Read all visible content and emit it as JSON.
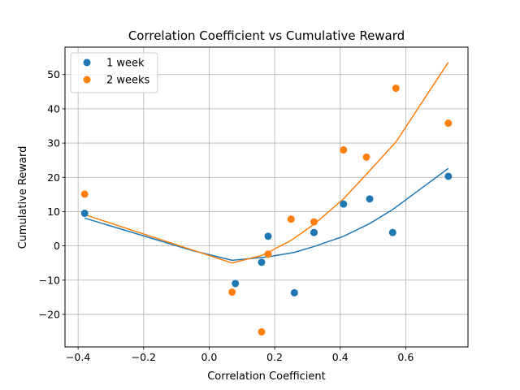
{
  "chart_data": {
    "type": "scatter",
    "title": "Correlation Coefficient vs Cumulative Reward",
    "xlabel": "Correlation Coefficient",
    "ylabel": "Cumulative Reward",
    "xlim": [
      -0.44,
      0.79
    ],
    "ylim": [
      -29.5,
      58
    ],
    "xticks": [
      -0.4,
      -0.2,
      0.0,
      0.2,
      0.4,
      0.6
    ],
    "xtick_labels": [
      "−0.4",
      "−0.2",
      "0.0",
      "0.2",
      "0.4",
      "0.6"
    ],
    "yticks": [
      -20,
      -10,
      0,
      10,
      20,
      30,
      40,
      50
    ],
    "ytick_labels": [
      "−20",
      "−10",
      "0",
      "10",
      "20",
      "30",
      "40",
      "50"
    ],
    "grid": true,
    "legend_position": "upper-left",
    "series": [
      {
        "name": "1 week",
        "color": "#1f77b4",
        "points": [
          {
            "x": -0.38,
            "y": 9.5
          },
          {
            "x": 0.08,
            "y": -11.0
          },
          {
            "x": 0.16,
            "y": -4.8
          },
          {
            "x": 0.18,
            "y": 2.8
          },
          {
            "x": 0.26,
            "y": -13.7
          },
          {
            "x": 0.32,
            "y": 3.9
          },
          {
            "x": 0.41,
            "y": 12.2
          },
          {
            "x": 0.49,
            "y": 13.7
          },
          {
            "x": 0.56,
            "y": 3.9
          },
          {
            "x": 0.73,
            "y": 20.3
          }
        ],
        "fit_line": [
          {
            "x": -0.38,
            "y": 8.1
          },
          {
            "x": -0.05,
            "y": -1.4
          },
          {
            "x": 0.07,
            "y": -4.2
          },
          {
            "x": 0.18,
            "y": -3.2
          },
          {
            "x": 0.26,
            "y": -1.9
          },
          {
            "x": 0.32,
            "y": -0.2
          },
          {
            "x": 0.41,
            "y": 2.8
          },
          {
            "x": 0.49,
            "y": 6.5
          },
          {
            "x": 0.56,
            "y": 10.6
          },
          {
            "x": 0.73,
            "y": 22.6
          }
        ]
      },
      {
        "name": "2 weeks",
        "color": "#ff7f0e",
        "points": [
          {
            "x": -0.38,
            "y": 15.1
          },
          {
            "x": 0.07,
            "y": -13.5
          },
          {
            "x": 0.16,
            "y": -25.1
          },
          {
            "x": 0.18,
            "y": -2.4
          },
          {
            "x": 0.25,
            "y": 7.8
          },
          {
            "x": 0.32,
            "y": 7.0
          },
          {
            "x": 0.41,
            "y": 28.0
          },
          {
            "x": 0.48,
            "y": 25.9
          },
          {
            "x": 0.57,
            "y": 46.0
          },
          {
            "x": 0.73,
            "y": 35.8
          }
        ],
        "fit_line": [
          {
            "x": -0.38,
            "y": 9.1
          },
          {
            "x": 0.07,
            "y": -5.0
          },
          {
            "x": 0.16,
            "y": -2.8
          },
          {
            "x": 0.18,
            "y": -1.9
          },
          {
            "x": 0.25,
            "y": 1.6
          },
          {
            "x": 0.32,
            "y": 6.3
          },
          {
            "x": 0.41,
            "y": 13.7
          },
          {
            "x": 0.48,
            "y": 20.9
          },
          {
            "x": 0.57,
            "y": 30.3
          },
          {
            "x": 0.73,
            "y": 53.6
          }
        ]
      }
    ]
  }
}
